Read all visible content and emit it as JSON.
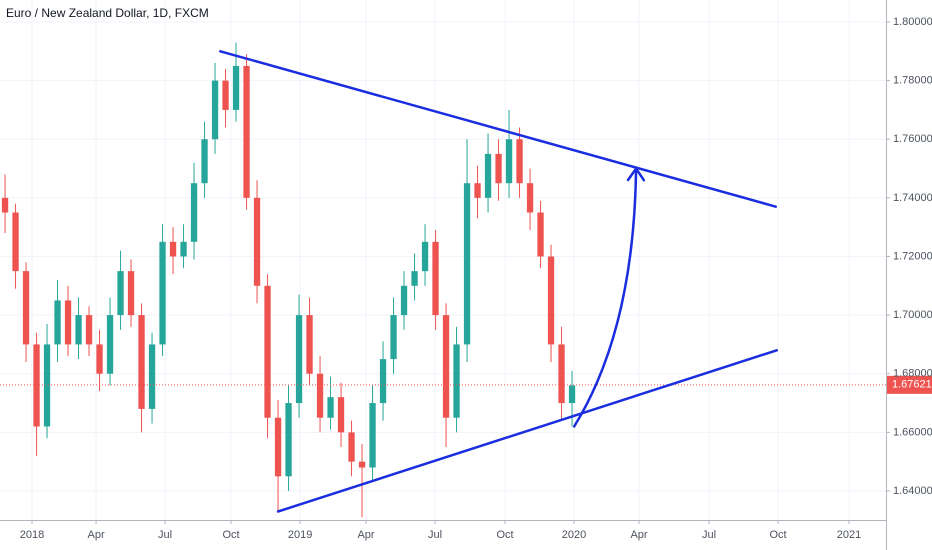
{
  "chart_data": {
    "type": "candlestick",
    "title": "Euro / New Zealand Dollar, 1D, FXCM",
    "up_color": "#26a69a",
    "down_color": "#ef5350",
    "open": [
      1.74,
      1.735,
      1.715,
      1.69,
      1.662,
      1.69,
      1.705,
      1.69,
      1.7,
      1.69,
      1.68,
      1.7,
      1.715,
      1.7,
      1.668,
      1.69,
      1.725,
      1.72,
      1.725,
      1.745,
      1.76,
      1.78,
      1.77,
      1.785,
      1.74,
      1.71,
      1.665,
      1.645,
      1.67,
      1.7,
      1.68,
      1.665,
      1.672,
      1.66,
      1.65,
      1.648,
      1.67,
      1.685,
      1.7,
      1.71,
      1.715,
      1.725,
      1.7,
      1.665,
      1.69,
      1.745,
      1.74,
      1.755,
      1.745,
      1.76,
      1.745,
      1.735,
      1.72,
      1.69,
      1.67
    ],
    "high": [
      1.748,
      1.738,
      1.718,
      1.694,
      1.697,
      1.712,
      1.71,
      1.706,
      1.703,
      1.695,
      1.706,
      1.722,
      1.719,
      1.704,
      1.694,
      1.731,
      1.73,
      1.731,
      1.752,
      1.766,
      1.786,
      1.784,
      1.793,
      1.789,
      1.746,
      1.714,
      1.671,
      1.676,
      1.707,
      1.706,
      1.686,
      1.679,
      1.677,
      1.664,
      1.656,
      1.676,
      1.691,
      1.706,
      1.715,
      1.721,
      1.731,
      1.729,
      1.704,
      1.696,
      1.76,
      1.751,
      1.762,
      1.76,
      1.77,
      1.764,
      1.75,
      1.739,
      1.724,
      1.696,
      1.681
    ],
    "low": [
      1.728,
      1.709,
      1.684,
      1.652,
      1.658,
      1.684,
      1.686,
      1.685,
      1.686,
      1.674,
      1.676,
      1.695,
      1.696,
      1.66,
      1.663,
      1.686,
      1.714,
      1.716,
      1.719,
      1.74,
      1.755,
      1.764,
      1.766,
      1.736,
      1.704,
      1.658,
      1.633,
      1.64,
      1.665,
      1.676,
      1.66,
      1.661,
      1.655,
      1.645,
      1.631,
      1.643,
      1.664,
      1.68,
      1.695,
      1.705,
      1.71,
      1.695,
      1.655,
      1.66,
      1.684,
      1.733,
      1.735,
      1.739,
      1.74,
      1.74,
      1.729,
      1.716,
      1.684,
      1.664,
      1.662
    ],
    "close": [
      1.735,
      1.715,
      1.69,
      1.662,
      1.69,
      1.705,
      1.69,
      1.7,
      1.69,
      1.68,
      1.7,
      1.715,
      1.7,
      1.668,
      1.69,
      1.725,
      1.72,
      1.725,
      1.745,
      1.76,
      1.78,
      1.77,
      1.785,
      1.74,
      1.71,
      1.665,
      1.645,
      1.67,
      1.7,
      1.68,
      1.665,
      1.672,
      1.66,
      1.65,
      1.648,
      1.67,
      1.685,
      1.7,
      1.71,
      1.715,
      1.725,
      1.7,
      1.665,
      1.69,
      1.745,
      1.74,
      1.755,
      1.745,
      1.76,
      1.745,
      1.735,
      1.72,
      1.69,
      1.67,
      1.676
    ],
    "xlim": [
      -0.48,
      83.9
    ],
    "xticks": [
      {
        "value": 2.57,
        "label": "2018"
      },
      {
        "value": 8.67,
        "label": "Apr"
      },
      {
        "value": 15.24,
        "label": "Jul"
      },
      {
        "value": 21.52,
        "label": "Oct"
      },
      {
        "value": 28.1,
        "label": "2019"
      },
      {
        "value": 34.38,
        "label": "Apr"
      },
      {
        "value": 40.95,
        "label": "Jul"
      },
      {
        "value": 47.62,
        "label": "Oct"
      },
      {
        "value": 54.19,
        "label": "2020"
      },
      {
        "value": 60.38,
        "label": "Apr"
      },
      {
        "value": 67.05,
        "label": "Jul"
      },
      {
        "value": 73.62,
        "label": "Oct"
      },
      {
        "value": 80.38,
        "label": "2021"
      }
    ],
    "ylim": [
      1.6301,
      1.8075
    ],
    "yticks": [
      {
        "value": 1.64,
        "label": "1.64000"
      },
      {
        "value": 1.66,
        "label": "1.66000"
      },
      {
        "value": 1.68,
        "label": "1.68000"
      },
      {
        "value": 1.7,
        "label": "1.70000"
      },
      {
        "value": 1.72,
        "label": "1.72000"
      },
      {
        "value": 1.74,
        "label": "1.74000"
      },
      {
        "value": 1.76,
        "label": "1.76000"
      },
      {
        "value": 1.78,
        "label": "1.78000"
      },
      {
        "value": 1.8,
        "label": "1.80000"
      }
    ],
    "grid": true,
    "last_price": {
      "value": 1.67621,
      "label": "1.67621",
      "color": "#ef5350"
    },
    "drawings": [
      {
        "color": "#1a2ee0",
        "points": [
          [
            20.5,
            1.79
          ],
          [
            73.4,
            1.737
          ]
        ]
      },
      {
        "color": "#1a2ee0",
        "points": [
          [
            26.0,
            1.633
          ],
          [
            73.5,
            1.688
          ]
        ]
      },
      {
        "color": "#1a2ee0",
        "arrow": true,
        "points": [
          [
            54.2,
            1.662
          ],
          [
            59.9,
            1.695
          ],
          [
            60.1,
            1.75
          ]
        ]
      }
    ]
  }
}
